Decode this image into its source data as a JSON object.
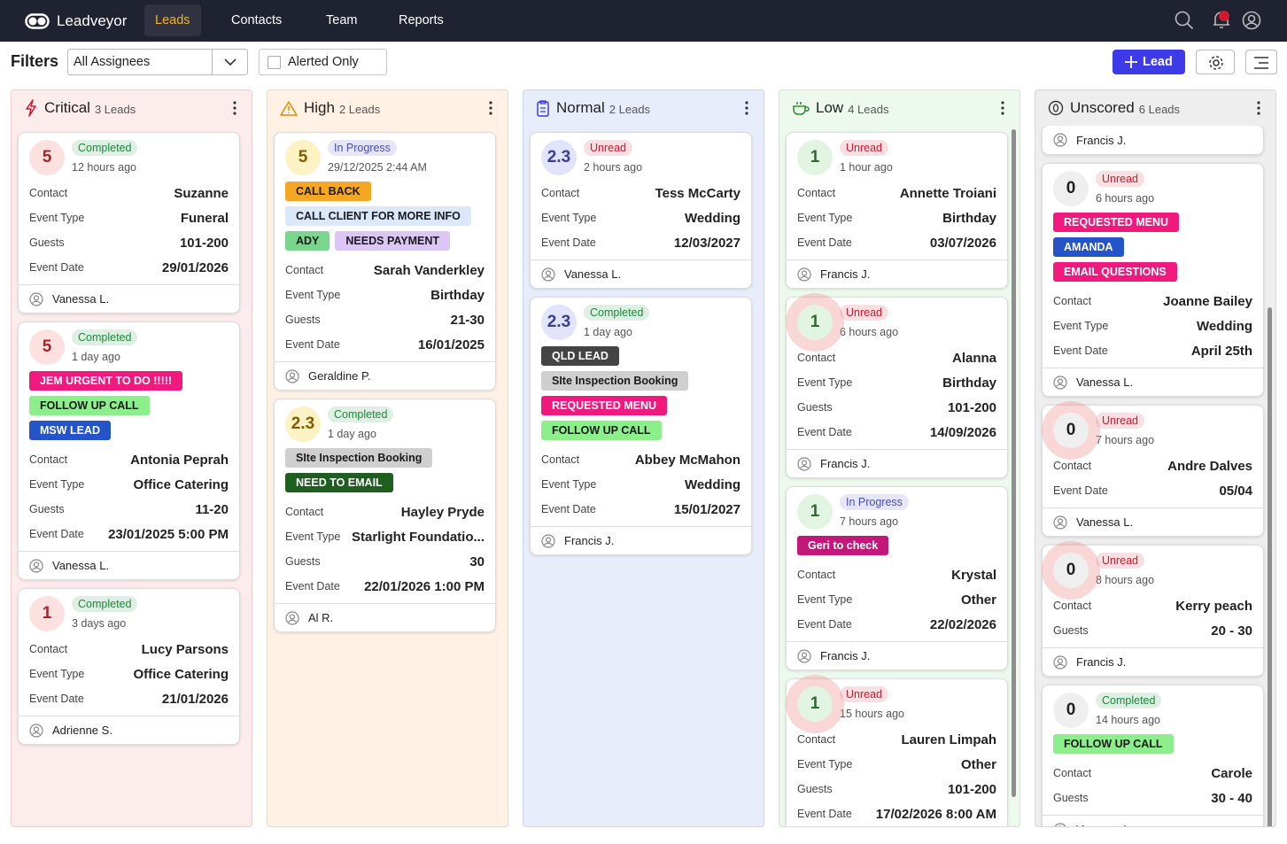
{
  "nav": {
    "brand": "Leadveyor",
    "tabs": [
      "Leads",
      "Contacts",
      "Team",
      "Reports"
    ]
  },
  "filters": {
    "title": "Filters",
    "assignee": "All Assignees",
    "alerted": "Alerted Only",
    "add": "Lead"
  },
  "columns": [
    {
      "name": "Critical",
      "count": "3 Leads",
      "color": "#fdecec",
      "border": "#f5cccc",
      "accent": "#a8262a",
      "accent_bg": "#fde0e0",
      "cards": [
        {
          "score": "5",
          "status": "Completed",
          "status_color": "#1a8a3a",
          "time": "12 hours ago",
          "fields": [
            [
              "Contact",
              "Suzanne"
            ],
            [
              "Event Type",
              "Funeral"
            ],
            [
              "Guests",
              "101-200"
            ],
            [
              "Event Date",
              "29/01/2026"
            ]
          ],
          "assignee": "Vanessa L."
        },
        {
          "score": "5",
          "status": "Completed",
          "status_color": "#1a8a3a",
          "time": "1 day ago",
          "tags": [
            {
              "text": "JEM URGENT TO DO !!!!!",
              "color": "#f0197d"
            },
            {
              "text": "FOLLOW UP CALL",
              "color": "#8cef8c"
            },
            {
              "text": "MSW LEAD",
              "color": "#2553c8"
            }
          ],
          "fields": [
            [
              "Contact",
              "Antonia Peprah"
            ],
            [
              "Event Type",
              "Office Catering"
            ],
            [
              "Guests",
              "11-20"
            ],
            [
              "Event Date",
              "23/01/2025 5:00 PM"
            ]
          ],
          "assignee": "Vanessa L."
        },
        {
          "score": "1",
          "status": "Completed",
          "status_color": "#1a8a3a",
          "time": "3 days ago",
          "fields": [
            [
              "Contact",
              "Lucy Parsons"
            ],
            [
              "Event Type",
              "Office Catering"
            ],
            [
              "Event Date",
              "21/01/2026"
            ]
          ],
          "assignee": "Adrienne S."
        }
      ]
    },
    {
      "name": "High",
      "count": "2 Leads",
      "color": "#fff2e5",
      "border": "#f8d5b2",
      "accent": "#8a5a00",
      "accent_bg": "#fdf2c4",
      "cards": [
        {
          "score": "5",
          "status": "In Progress",
          "status_color": "#4a4ac0",
          "time": "29/12/2025 2:44 AM",
          "tags": [
            {
              "text": "CALL BACK",
              "color": "#f5a623"
            },
            {
              "text": "CALL CLIENT FOR MORE INFO",
              "color": "#dbe8fb"
            },
            {
              "text": "ADY",
              "color": "#7ad68f"
            },
            {
              "text": "NEEDS PAYMENT",
              "color": "#dcc6f5"
            }
          ],
          "fields": [
            [
              "Contact",
              "Sarah Vanderkley"
            ],
            [
              "Event Type",
              "Birthday"
            ],
            [
              "Guests",
              "21-30"
            ],
            [
              "Event Date",
              "16/01/2025"
            ]
          ],
          "assignee": "Geraldine P."
        },
        {
          "score": "2.3",
          "status": "Completed",
          "status_color": "#1a8a3a",
          "time": "1 day ago",
          "tags": [
            {
              "text": "SIte Inspection Booking",
              "color": "#cfcfcf"
            },
            {
              "text": "NEED TO EMAIL",
              "color": "#1e5e1e"
            }
          ],
          "fields": [
            [
              "Contact",
              "Hayley Pryde"
            ],
            [
              "Event Type",
              "Starlight Foundatio..."
            ],
            [
              "Guests",
              "30"
            ],
            [
              "Event Date",
              "22/01/2026 1:00 PM"
            ]
          ],
          "assignee": "Al R."
        }
      ]
    },
    {
      "name": "Normal",
      "count": "2 Leads",
      "color": "#e8edfb",
      "border": "#cad4f3",
      "accent": "#3b3f8f",
      "accent_bg": "#e1e4fb",
      "cards": [
        {
          "score": "2.3",
          "status": "Unread",
          "status_color": "#d0192f",
          "time": "2 hours ago",
          "fields": [
            [
              "Contact",
              "Tess McCarty"
            ],
            [
              "Event Type",
              "Wedding"
            ],
            [
              "Event Date",
              "12/03/2027"
            ]
          ],
          "assignee": "Vanessa L."
        },
        {
          "score": "2.3",
          "status": "Completed",
          "status_color": "#1a8a3a",
          "time": "1 day ago",
          "tags": [
            {
              "text": "QLD LEAD",
              "color": "#444444"
            },
            {
              "text": "SIte Inspection Booking",
              "color": "#cfcfcf"
            },
            {
              "text": "REQUESTED MENU",
              "color": "#f0197d"
            },
            {
              "text": "FOLLOW UP CALL",
              "color": "#8cef8c"
            }
          ],
          "fields": [
            [
              "Contact",
              "Abbey McMahon"
            ],
            [
              "Event Type",
              "Wedding"
            ],
            [
              "Event Date",
              "15/01/2027"
            ]
          ],
          "assignee": "Francis J."
        }
      ]
    },
    {
      "name": "Low",
      "count": "4 Leads",
      "color": "#eef9ee",
      "border": "#c9ebc9",
      "accent": "#2d6b2d",
      "accent_bg": "#e2f5e2",
      "cards": [
        {
          "score": "1",
          "status": "Unread",
          "status_color": "#d0192f",
          "time": "1 hour ago",
          "fields": [
            [
              "Contact",
              "Annette Troiani"
            ],
            [
              "Event Type",
              "Birthday"
            ],
            [
              "Event Date",
              "03/07/2026"
            ]
          ],
          "assignee": "Francis J."
        },
        {
          "score": "1",
          "status": "Unread",
          "status_color": "#d0192f",
          "time": "6 hours ago",
          "alert": true,
          "fields": [
            [
              "Contact",
              "Alanna"
            ],
            [
              "Event Type",
              "Birthday"
            ],
            [
              "Guests",
              "101-200"
            ],
            [
              "Event Date",
              "14/09/2026"
            ]
          ],
          "assignee": "Francis J."
        },
        {
          "score": "1",
          "status": "In Progress",
          "status_color": "#4a4ac0",
          "time": "7 hours ago",
          "tags": [
            {
              "text": "Geri to check",
              "color": "#c2187a"
            }
          ],
          "fields": [
            [
              "Contact",
              "Krystal"
            ],
            [
              "Event Type",
              "Other"
            ],
            [
              "Event Date",
              "22/02/2026"
            ]
          ],
          "assignee": "Francis J."
        },
        {
          "score": "1",
          "status": "Unread",
          "status_color": "#d0192f",
          "time": "15 hours ago",
          "alert": true,
          "fields": [
            [
              "Contact",
              "Lauren Limpah"
            ],
            [
              "Event Type",
              "Other"
            ],
            [
              "Guests",
              "101-200"
            ],
            [
              "Event Date",
              "17/02/2026 8:00 AM"
            ]
          ]
        }
      ]
    },
    {
      "name": "Unscored",
      "count": "6 Leads",
      "color": "#eeeeee",
      "border": "#d8d8d8",
      "accent": "#1f1f1f",
      "accent_bg": "#efefef",
      "cards": [
        {
          "assignee": "Francis J."
        },
        {
          "score": "0",
          "status": "Unread",
          "status_color": "#d0192f",
          "time": "6 hours ago",
          "tags": [
            {
              "text": "REQUESTED MENU",
              "color": "#f0197d"
            },
            {
              "text": "AMANDA",
              "color": "#2553c8"
            },
            {
              "text": "EMAIL QUESTIONS",
              "color": "#f0197d"
            }
          ],
          "fields": [
            [
              "Contact",
              "Joanne Bailey"
            ],
            [
              "Event Type",
              "Wedding"
            ],
            [
              "Event Date",
              "April 25th"
            ]
          ],
          "assignee": "Vanessa L."
        },
        {
          "score": "0",
          "status": "Unread",
          "status_color": "#d0192f",
          "time": "7 hours ago",
          "alert": true,
          "fields": [
            [
              "Contact",
              "Andre Dalves"
            ],
            [
              "Event Date",
              "05/04"
            ]
          ],
          "assignee": "Vanessa L."
        },
        {
          "score": "0",
          "status": "Unread",
          "status_color": "#d0192f",
          "time": "8 hours ago",
          "alert": true,
          "fields": [
            [
              "Contact",
              "Kerry peach"
            ],
            [
              "Guests",
              "20 - 30"
            ]
          ],
          "assignee": "Francis J."
        },
        {
          "score": "0",
          "status": "Completed",
          "status_color": "#1a8a3a",
          "time": "14 hours ago",
          "tags": [
            {
              "text": "FOLLOW UP CALL",
              "color": "#8cef8c"
            }
          ],
          "fields": [
            [
              "Contact",
              "Carole"
            ],
            [
              "Guests",
              "30 - 40"
            ]
          ],
          "assignee": "Vanessa L."
        }
      ]
    }
  ]
}
